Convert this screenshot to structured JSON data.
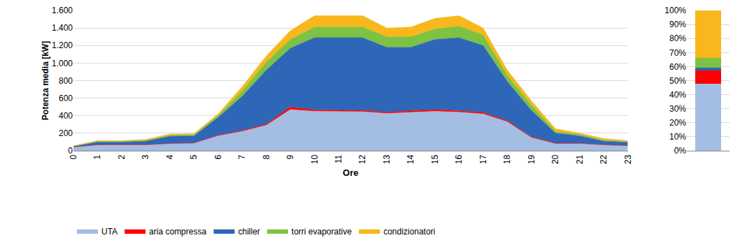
{
  "chart_data": [
    {
      "type": "area",
      "stacked": true,
      "grid": true,
      "legend": "bottom",
      "x_label": "Ore",
      "y_label": "Potenza media [kW]",
      "x": [
        0,
        1,
        2,
        3,
        4,
        5,
        6,
        7,
        8,
        9,
        10,
        11,
        12,
        13,
        14,
        15,
        16,
        17,
        18,
        19,
        20,
        21,
        22,
        23
      ],
      "xlim": [
        0,
        23
      ],
      "xticks": [
        0,
        1,
        2,
        3,
        4,
        5,
        6,
        7,
        8,
        9,
        10,
        11,
        12,
        13,
        14,
        15,
        16,
        17,
        18,
        19,
        20,
        21,
        22,
        23
      ],
      "ylim": [
        0,
        1600
      ],
      "yticks": [
        0,
        200,
        400,
        600,
        800,
        {
          "value": 1000,
          "label": "1.000"
        },
        {
          "value": 1200,
          "label": "1.200"
        },
        {
          "value": 1400,
          "label": "1.400"
        },
        {
          "value": 1600,
          "label": "1.600"
        }
      ],
      "series": [
        {
          "name": "UTA",
          "color": "#a3bde3",
          "values": [
            40,
            65,
            65,
            65,
            80,
            85,
            170,
            220,
            290,
            470,
            450,
            445,
            445,
            425,
            440,
            450,
            440,
            420,
            330,
            150,
            80,
            80,
            65,
            55
          ]
        },
        {
          "name": "aria compressa",
          "color": "#ff0000",
          "values": [
            2,
            3,
            3,
            3,
            3,
            3,
            8,
            10,
            12,
            30,
            15,
            15,
            15,
            15,
            15,
            20,
            15,
            15,
            12,
            8,
            5,
            5,
            3,
            3
          ]
        },
        {
          "name": "chiller",
          "color": "#2e67b8",
          "values": [
            8,
            32,
            32,
            42,
            82,
            82,
            202,
            390,
            618,
            670,
            825,
            830,
            830,
            740,
            725,
            800,
            835,
            765,
            448,
            302,
            115,
            85,
            42,
            37
          ]
        },
        {
          "name": "torri evaporative",
          "color": "#7dc242",
          "values": [
            2,
            5,
            5,
            5,
            10,
            10,
            20,
            60,
            90,
            100,
            120,
            120,
            120,
            120,
            120,
            120,
            130,
            120,
            70,
            60,
            20,
            15,
            10,
            10
          ]
        },
        {
          "name": "condizionatori",
          "color": "#f8b71c",
          "values": [
            3,
            10,
            10,
            15,
            15,
            15,
            20,
            50,
            70,
            100,
            130,
            130,
            130,
            100,
            110,
            120,
            120,
            80,
            60,
            50,
            30,
            15,
            20,
            10
          ]
        }
      ]
    },
    {
      "type": "bar",
      "stacked": true,
      "grid": true,
      "tick_labels": "y",
      "categories": [
        null
      ],
      "ylim": [
        0,
        100
      ],
      "yticks": [
        {
          "value": 0,
          "label": "0%"
        },
        {
          "value": 10,
          "label": "10%"
        },
        {
          "value": 20,
          "label": "20%"
        },
        {
          "value": 30,
          "label": "30%"
        },
        {
          "value": 40,
          "label": "40%"
        },
        {
          "value": 50,
          "label": "50%"
        },
        {
          "value": 60,
          "label": "60%"
        },
        {
          "value": 70,
          "label": "70%"
        },
        {
          "value": 80,
          "label": "80%"
        },
        {
          "value": 90,
          "label": "90%"
        },
        {
          "value": 100,
          "label": "100%"
        }
      ],
      "series": [
        {
          "name": "UTA",
          "color": "#a3bde3",
          "values": [
            48
          ]
        },
        {
          "name": "aria compressa",
          "color": "#ff0000",
          "values": [
            9
          ]
        },
        {
          "name": "chiller",
          "color": "#2e67b8",
          "values": [
            2
          ]
        },
        {
          "name": "torri evaporative",
          "color": "#7dc242",
          "values": [
            7
          ]
        },
        {
          "name": "condizionatori",
          "color": "#f8b71c",
          "values": [
            34
          ]
        }
      ]
    }
  ]
}
